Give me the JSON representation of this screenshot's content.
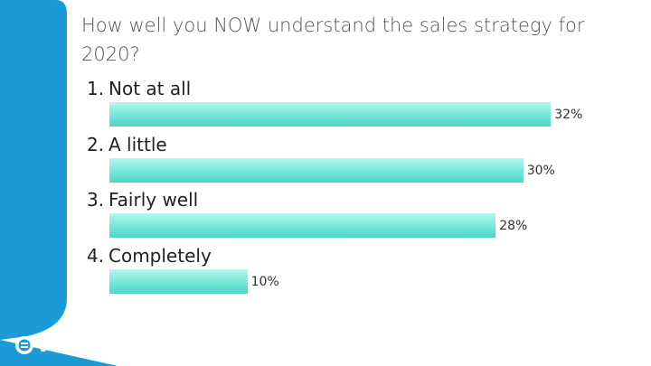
{
  "question": "How well you NOW understand the sales strategy for 2020?",
  "brand": {
    "name": "vevox",
    "colors": {
      "shape": "#1a9bd7",
      "bar_light": "#b6f7ef",
      "bar_dark": "#4dd6c4"
    }
  },
  "chart_data": {
    "type": "bar",
    "orientation": "horizontal",
    "categories": [
      "Not at all",
      "A little",
      "Fairly well",
      "Completely"
    ],
    "numbers": [
      "1.",
      "2.",
      "3.",
      "4."
    ],
    "values": [
      32,
      30,
      28,
      10
    ],
    "value_labels": [
      "32%",
      "30%",
      "28%",
      "10%"
    ],
    "unit": "%",
    "xlim": [
      0,
      35
    ],
    "grid": false,
    "legend": "none"
  }
}
